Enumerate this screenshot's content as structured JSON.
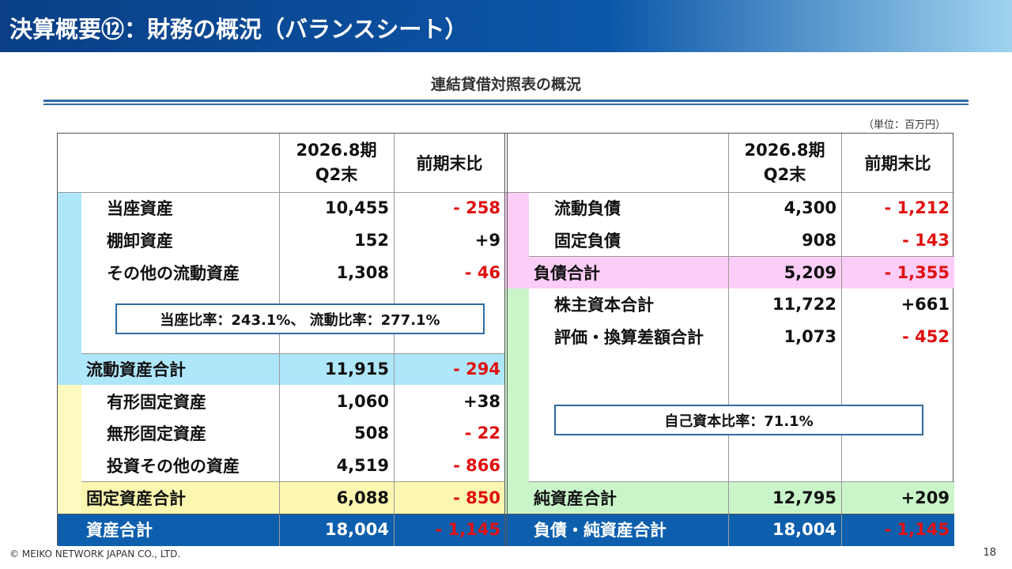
{
  "header": {
    "title": "決算概要⑫：財務の概況（バランスシート）"
  },
  "subtitle": "連結貸借対照表の概況",
  "unit": "（単位：百万円）",
  "table": {
    "period": [
      "2026.8期",
      "Q2末"
    ],
    "change": "前期末比",
    "left": [
      {
        "label": "当座資産",
        "value": "10,455",
        "change": "- 258"
      },
      {
        "label": "棚卸資産",
        "value": "152",
        "change": "+9"
      },
      {
        "label": "その他の流動資産",
        "value": "1,308",
        "change": "- 46"
      },
      {
        "label": "流動資産合計",
        "value": "11,915",
        "change": "- 294"
      },
      {
        "label": "有形固定資産",
        "value": "1,060",
        "change": "+38"
      },
      {
        "label": "無形固定資産",
        "value": "508",
        "change": "- 22"
      },
      {
        "label": "投資その他の資産",
        "value": "4,519",
        "change": "- 866"
      },
      {
        "label": "固定資産合計",
        "value": "6,088",
        "change": "- 850"
      },
      {
        "label": "資産合計",
        "value": "18,004",
        "change": "- 1,145"
      }
    ],
    "right": [
      {
        "label": "流動負債",
        "value": "4,300",
        "change": "- 1,212"
      },
      {
        "label": "固定負債",
        "value": "908",
        "change": "- 143"
      },
      {
        "label": "負債合計",
        "value": "5,209",
        "change": "- 1,355"
      },
      {
        "label": "株主資本合計",
        "value": "11,722",
        "change": "+661"
      },
      {
        "label": "評価・換算差額合計",
        "value": "1,073",
        "change": "- 452"
      },
      {
        "label": "純資産合計",
        "value": "12,795",
        "change": "+209"
      },
      {
        "label": "負債・純資産合計",
        "value": "18,004",
        "change": "- 1,145"
      }
    ]
  },
  "notes": [
    "当座比率：243.1%、 流動比率：277.1%",
    "自己資本比率：71.1%"
  ],
  "footer": {
    "copyright": "© MEIKO NETWORK JAPAN CO., LTD.",
    "page": "18"
  }
}
